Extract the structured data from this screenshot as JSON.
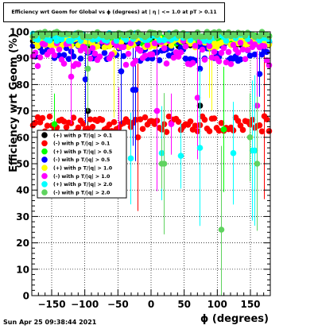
{
  "chart_data": {
    "type": "scatter",
    "title": "Efficiency wrt Geom for Global vs ϕ (degrees) at | η | <= 1.0 at pT > 0.11",
    "xlabel": "ϕ (degrees)",
    "ylabel": "Efficiency wrt Geom (%)",
    "xlim": [
      -180,
      180
    ],
    "ylim": [
      0,
      100
    ],
    "xticks": [
      -150,
      -100,
      -50,
      0,
      50,
      100,
      150
    ],
    "yticks": [
      0,
      10,
      20,
      30,
      40,
      50,
      60,
      70,
      80,
      90,
      100
    ],
    "grid": true,
    "legend_position": "center-left",
    "series": [
      {
        "name": "(+) with p T/|q| > 0.1",
        "color": "#000000",
        "base": 96,
        "spread": 1.5,
        "outliers": [
          [
            -95,
            70
          ],
          [
            75,
            72
          ]
        ]
      },
      {
        "name": "(-) with p T/|q| > 0.1",
        "color": "#ff0000",
        "base": 65,
        "spread": 3,
        "outliers": [
          [
            -20,
            60
          ],
          [
            170,
            68
          ]
        ]
      },
      {
        "name": "(+) with p T/|q| > 0.5",
        "color": "#00ff00",
        "base": 97,
        "spread": 1.5,
        "outliers": [
          [
            -145,
            65
          ],
          [
            110,
            63
          ]
        ]
      },
      {
        "name": "(-) with p T/|q| > 0.5",
        "color": "#0000ff",
        "base": 93,
        "spread": 4,
        "outliers": [
          [
            -100,
            82
          ],
          [
            -45,
            85
          ],
          [
            -25,
            78
          ],
          [
            75,
            86
          ],
          [
            163,
            84
          ]
        ]
      },
      {
        "name": "(+) with p T/|q| > 1.0",
        "color": "#ffff00",
        "base": 96,
        "spread": 2,
        "outliers": [
          [
            -55,
            92
          ],
          [
            90,
            94
          ]
        ]
      },
      {
        "name": "(-) with p T/|q| > 1.0",
        "color": "#ff00ff",
        "base": 92,
        "spread": 5,
        "outliers": [
          [
            -120,
            83
          ],
          [
            -50,
            60
          ],
          [
            10,
            70
          ],
          [
            30,
            65
          ],
          [
            70,
            75
          ],
          [
            160,
            72
          ]
        ]
      },
      {
        "name": "(+) with p T/|q| > 2.0",
        "color": "#00ffff",
        "base": 98,
        "spread": 1.5,
        "outliers": [
          [
            -30,
            52
          ],
          [
            15,
            54
          ],
          [
            45,
            53
          ],
          [
            75,
            56
          ],
          [
            125,
            54
          ],
          [
            155,
            55
          ]
        ]
      },
      {
        "name": "(-) with p T/|q| > 2.0",
        "color": "#5fd35f",
        "base": 99,
        "spread": 1,
        "outliers": [
          [
            -95,
            86
          ],
          [
            15,
            50
          ],
          [
            20,
            50
          ],
          [
            105,
            25
          ],
          [
            160,
            50
          ],
          [
            150,
            60
          ]
        ]
      }
    ]
  },
  "timestamp": "Sun Apr 25 09:38:44 2021"
}
